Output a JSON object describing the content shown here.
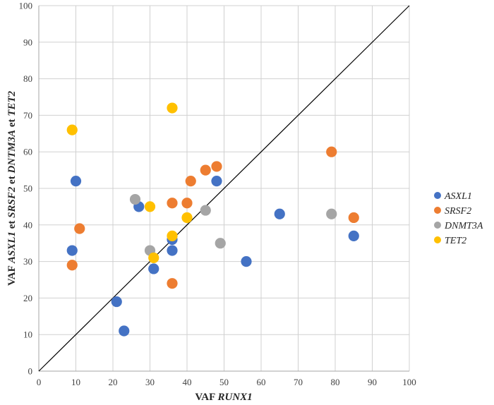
{
  "chart_data": {
    "type": "scatter",
    "xlabel": [
      {
        "text": "VAF ",
        "italic": false
      },
      {
        "text": "RUNX1",
        "italic": true
      }
    ],
    "ylabel": [
      {
        "text": "VAF ",
        "italic": false
      },
      {
        "text": "ASXL1",
        "italic": true
      },
      {
        "text": " et ",
        "italic": false
      },
      {
        "text": "SRSF2",
        "italic": true
      },
      {
        "text": " et ",
        "italic": false
      },
      {
        "text": "DNTM3A",
        "italic": true
      },
      {
        "text": " et ",
        "italic": false
      },
      {
        "text": "TET2",
        "italic": true
      }
    ],
    "xlim": [
      0,
      100
    ],
    "ylim": [
      0,
      100
    ],
    "xticks": [
      0,
      10,
      20,
      30,
      40,
      50,
      60,
      70,
      80,
      90,
      100
    ],
    "yticks": [
      0,
      10,
      20,
      30,
      40,
      50,
      60,
      70,
      80,
      90,
      100
    ],
    "grid": true,
    "legend": "right",
    "reference_line": {
      "from": [
        0,
        0
      ],
      "to": [
        100,
        100
      ],
      "color": "#000000"
    },
    "series": [
      {
        "name": "ASXL1",
        "color": "#4472C4",
        "points": [
          [
            10,
            52
          ],
          [
            9,
            33
          ],
          [
            27,
            45
          ],
          [
            36,
            36
          ],
          [
            36,
            33
          ],
          [
            31,
            28
          ],
          [
            21,
            19
          ],
          [
            23,
            11
          ],
          [
            48,
            52
          ],
          [
            56,
            30
          ],
          [
            65,
            43
          ],
          [
            85,
            37
          ]
        ]
      },
      {
        "name": "SRSF2",
        "color": "#ED7D31",
        "points": [
          [
            11,
            39
          ],
          [
            9,
            29
          ],
          [
            36,
            46
          ],
          [
            36,
            24
          ],
          [
            40,
            46
          ],
          [
            41,
            52
          ],
          [
            45,
            55
          ],
          [
            48,
            56
          ],
          [
            79,
            60
          ],
          [
            85,
            42
          ]
        ]
      },
      {
        "name": "DNMT3A",
        "color": "#A5A5A5",
        "points": [
          [
            26,
            47
          ],
          [
            30,
            33
          ],
          [
            45,
            44
          ],
          [
            49,
            35
          ],
          [
            79,
            43
          ]
        ]
      },
      {
        "name": "TET2",
        "color": "#FFC000",
        "points": [
          [
            9,
            66
          ],
          [
            36,
            72
          ],
          [
            30,
            45
          ],
          [
            31,
            31
          ],
          [
            36,
            37
          ],
          [
            40,
            42
          ]
        ]
      }
    ]
  }
}
